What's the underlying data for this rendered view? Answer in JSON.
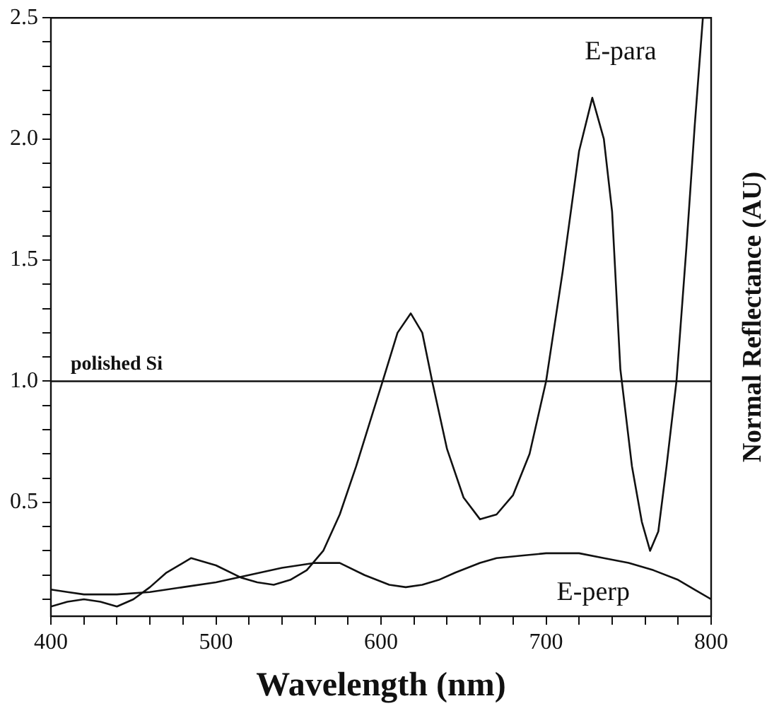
{
  "chart_data": {
    "type": "line",
    "xlabel": "Wavelength (nm)",
    "ylabel": "Normal Reflectance (AU)",
    "xlim": [
      400,
      800
    ],
    "xticks": [
      400,
      {
        "value": 420,
        "label": null
      },
      {
        "value": 440,
        "label": null
      },
      {
        "value": 460,
        "label": null
      },
      {
        "value": 480,
        "label": null
      },
      500,
      {
        "value": 520,
        "label": null
      },
      {
        "value": 540,
        "label": null
      },
      {
        "value": 560,
        "label": null
      },
      {
        "value": 580,
        "label": null
      },
      600,
      {
        "value": 620,
        "label": null
      },
      {
        "value": 640,
        "label": null
      },
      {
        "value": 660,
        "label": null
      },
      {
        "value": 680,
        "label": null
      },
      700,
      {
        "value": 720,
        "label": null
      },
      {
        "value": 740,
        "label": null
      },
      {
        "value": 760,
        "label": null
      },
      {
        "value": 780,
        "label": null
      },
      800
    ],
    "ylim": [
      0.03,
      2.5
    ],
    "yticks": [
      {
        "value": 0.1,
        "label": null
      },
      {
        "value": 0.2,
        "label": null
      },
      {
        "value": 0.3,
        "label": null
      },
      {
        "value": 0.4,
        "label": null
      },
      0.5,
      {
        "value": 0.6,
        "label": null
      },
      {
        "value": 0.7,
        "label": null
      },
      {
        "value": 0.8,
        "label": null
      },
      {
        "value": 0.9,
        "label": null
      },
      {
        "value": 1.0,
        "label": "1.0"
      },
      {
        "value": 1.1,
        "label": null
      },
      {
        "value": 1.2,
        "label": null
      },
      {
        "value": 1.3,
        "label": null
      },
      {
        "value": 1.4,
        "label": null
      },
      1.5,
      {
        "value": 1.6,
        "label": null
      },
      {
        "value": 1.7,
        "label": null
      },
      {
        "value": 1.8,
        "label": null
      },
      {
        "value": 1.9,
        "label": null
      },
      {
        "value": 2.0,
        "label": "2.0"
      },
      {
        "value": 2.1,
        "label": null
      },
      {
        "value": 2.2,
        "label": null
      },
      {
        "value": 2.3,
        "label": null
      },
      {
        "value": 2.4,
        "label": null
      },
      2.5
    ],
    "grid": false,
    "legend": false,
    "marker": "none",
    "series": [
      {
        "name": "E-para",
        "color": "#111111",
        "x": [
          400,
          410,
          420,
          430,
          440,
          450,
          460,
          470,
          485,
          500,
          515,
          525,
          535,
          545,
          555,
          565,
          575,
          585,
          595,
          601,
          610,
          618,
          625,
          631,
          640,
          650,
          660,
          670,
          680,
          690,
          700,
          710,
          720,
          728,
          735,
          740,
          745,
          752,
          758,
          763,
          768,
          773,
          779,
          785,
          790,
          795
        ],
        "values": [
          0.07,
          0.09,
          0.1,
          0.09,
          0.07,
          0.1,
          0.15,
          0.21,
          0.27,
          0.24,
          0.19,
          0.17,
          0.16,
          0.18,
          0.22,
          0.3,
          0.45,
          0.65,
          0.87,
          1.0,
          1.2,
          1.28,
          1.2,
          1.0,
          0.72,
          0.52,
          0.43,
          0.45,
          0.53,
          0.7,
          1.0,
          1.45,
          1.95,
          2.17,
          2.0,
          1.7,
          1.05,
          0.65,
          0.42,
          0.3,
          0.38,
          0.65,
          1.0,
          1.55,
          2.05,
          2.5
        ]
      },
      {
        "name": "E-perp",
        "color": "#111111",
        "line_style": "solid",
        "x": [
          400,
          410,
          420,
          440,
          460,
          480,
          500,
          520,
          540,
          560,
          575,
          590,
          605,
          615,
          625,
          635,
          645,
          660,
          670,
          685,
          700,
          720,
          735,
          750,
          765,
          780,
          790,
          800
        ],
        "values": [
          0.14,
          0.13,
          0.12,
          0.12,
          0.13,
          0.15,
          0.17,
          0.2,
          0.23,
          0.25,
          0.25,
          0.2,
          0.16,
          0.15,
          0.16,
          0.18,
          0.21,
          0.25,
          0.27,
          0.28,
          0.29,
          0.29,
          0.27,
          0.25,
          0.22,
          0.18,
          0.14,
          0.1
        ]
      }
    ],
    "ref_lines": [
      {
        "axis": "y",
        "value": 1.0,
        "label": "polished Si",
        "color": "#111111"
      }
    ]
  }
}
